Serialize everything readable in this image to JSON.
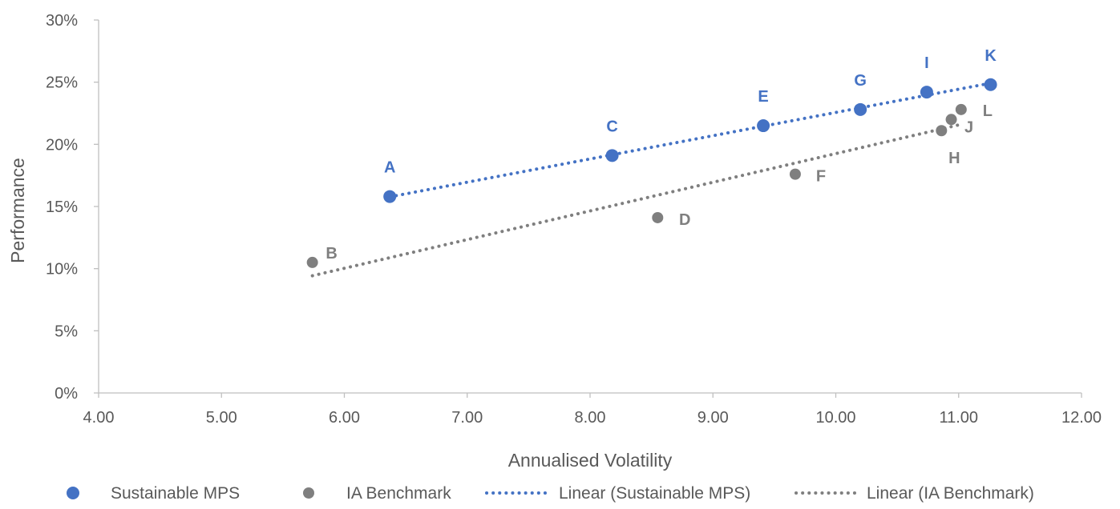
{
  "chart_data": {
    "type": "scatter",
    "title": "",
    "xlabel": "Annualised Volatility",
    "ylabel": "Performance",
    "xlim": [
      4.0,
      12.0
    ],
    "ylim": [
      0,
      30
    ],
    "x_ticks": [
      "4.00",
      "5.00",
      "6.00",
      "7.00",
      "8.00",
      "9.00",
      "10.00",
      "11.00",
      "12.00"
    ],
    "y_ticks": [
      "0%",
      "5%",
      "10%",
      "15%",
      "20%",
      "25%",
      "30%"
    ],
    "grid": false,
    "legend_position": "bottom",
    "series": [
      {
        "name": "Sustainable MPS",
        "color": "#4472C4",
        "points": [
          {
            "label": "A",
            "x": 6.37,
            "y": 15.8
          },
          {
            "label": "C",
            "x": 8.18,
            "y": 19.1
          },
          {
            "label": "E",
            "x": 9.41,
            "y": 21.5
          },
          {
            "label": "G",
            "x": 10.2,
            "y": 22.8
          },
          {
            "label": "I",
            "x": 10.74,
            "y": 24.2
          },
          {
            "label": "K",
            "x": 11.26,
            "y": 24.8
          }
        ],
        "trendline": {
          "name": "Linear (Sustainable MPS)",
          "type": "linear",
          "style": "dotted"
        }
      },
      {
        "name": "IA Benchmark",
        "color": "#7F7F7F",
        "points": [
          {
            "label": "B",
            "x": 5.74,
            "y": 10.5
          },
          {
            "label": "D",
            "x": 8.55,
            "y": 14.1
          },
          {
            "label": "F",
            "x": 9.67,
            "y": 17.6
          },
          {
            "label": "H",
            "x": 10.86,
            "y": 21.1
          },
          {
            "label": "J",
            "x": 10.94,
            "y": 22.0
          },
          {
            "label": "L",
            "x": 11.02,
            "y": 22.8
          }
        ],
        "trendline": {
          "name": "Linear (IA Benchmark)",
          "type": "linear",
          "style": "dotted"
        }
      }
    ]
  }
}
